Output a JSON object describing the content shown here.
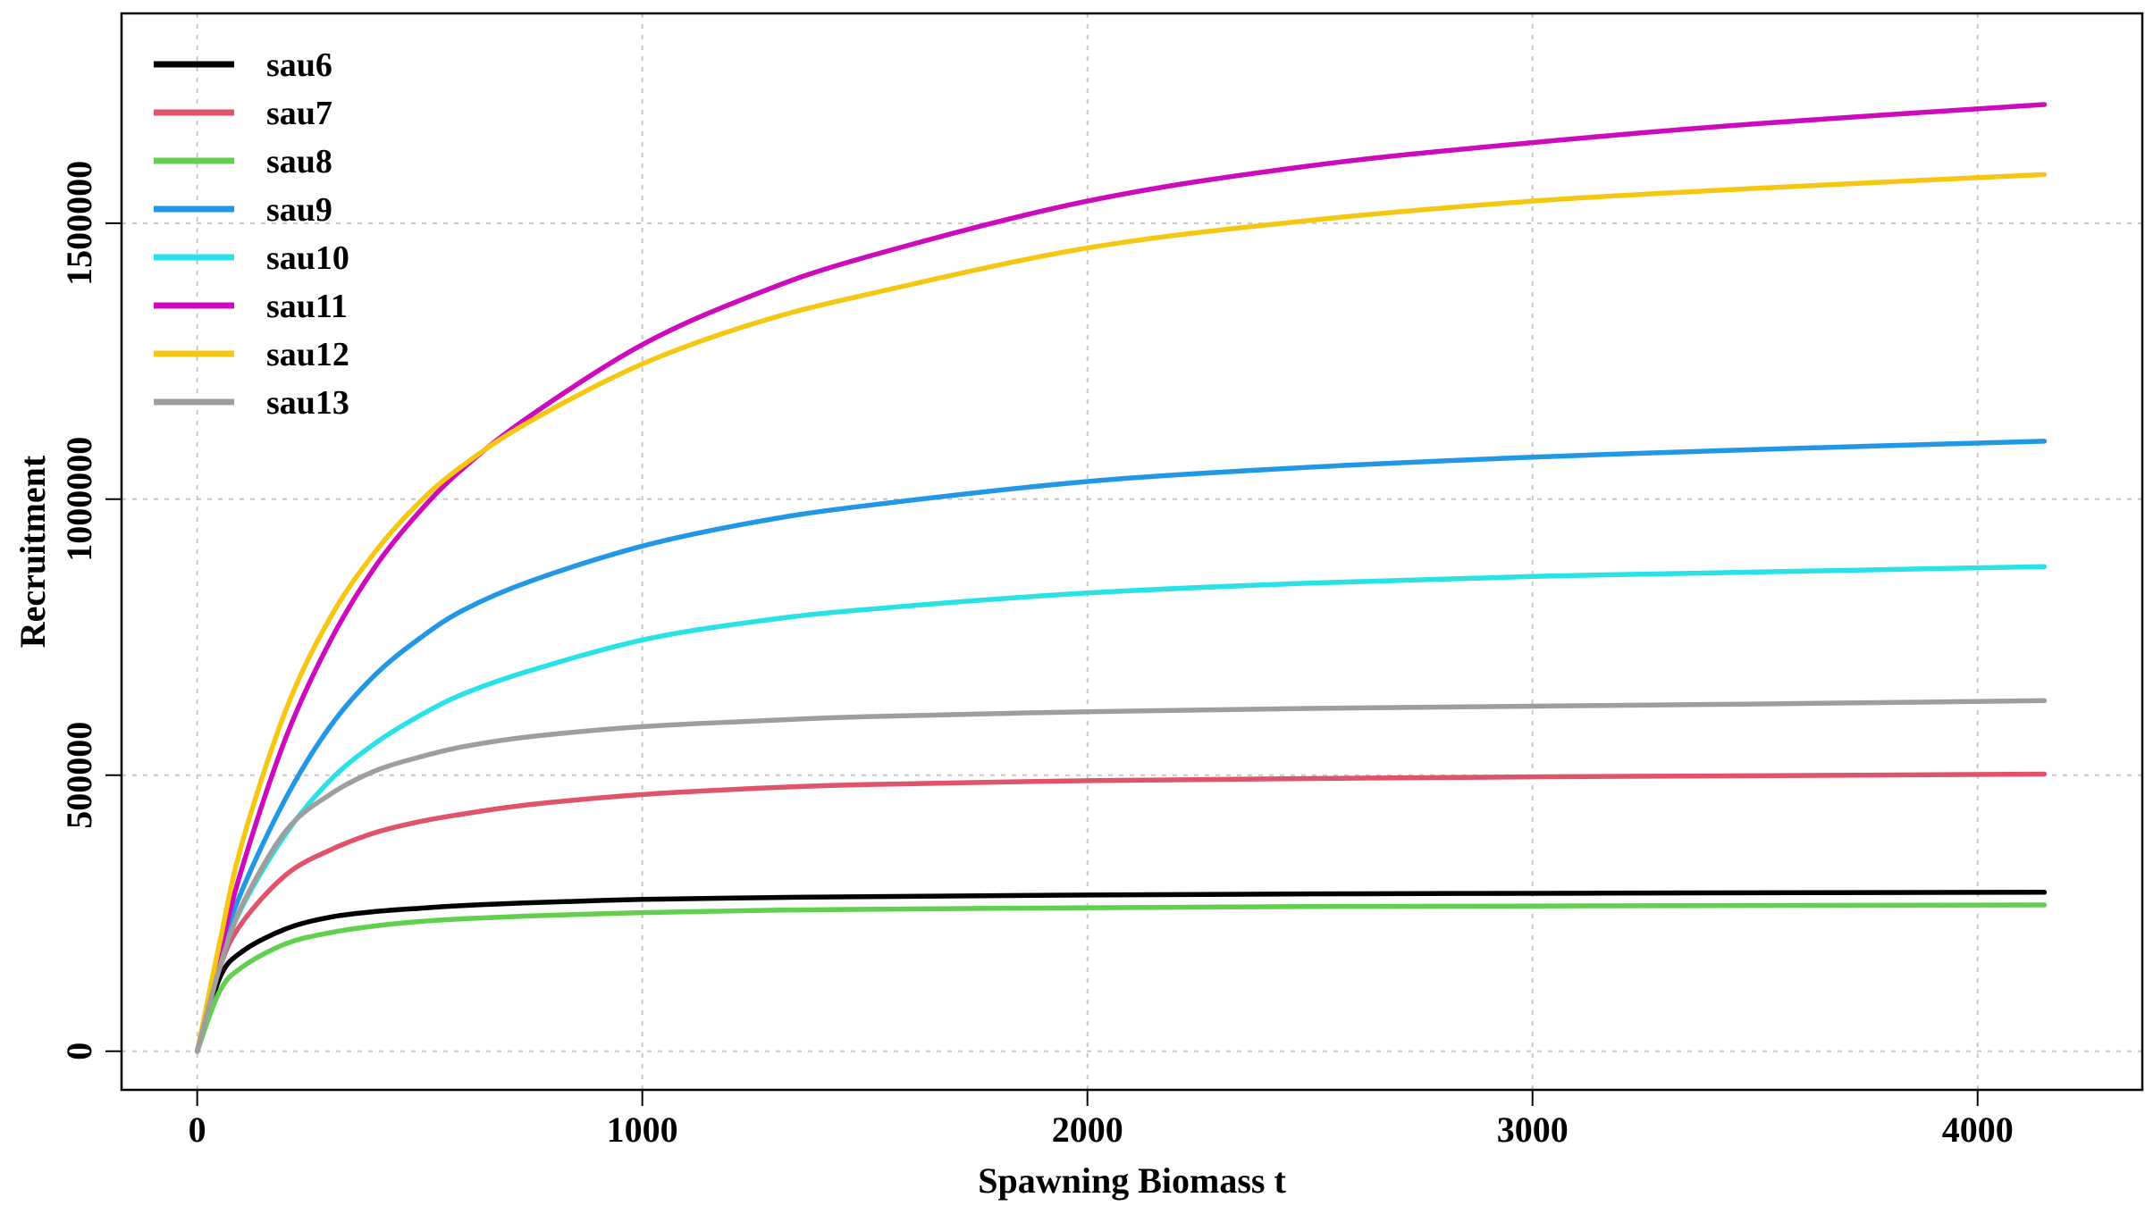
{
  "chart_data": {
    "type": "line",
    "title": "",
    "xlabel": "Spawning Biomass t",
    "ylabel": "Recruitment",
    "xlim": [
      -170,
      4370
    ],
    "ylim": [
      -70000,
      1880000
    ],
    "xticks": [
      0,
      1000,
      2000,
      3000,
      4000
    ],
    "yticks": [
      0,
      500000,
      1000000,
      1500000
    ],
    "xtick_labels": [
      "0",
      "1000",
      "2000",
      "3000",
      "4000"
    ],
    "ytick_labels": [
      "0",
      "500000",
      "1000000",
      "1500000"
    ],
    "grid": true,
    "legend_position": "top-left",
    "x": [
      0,
      50,
      100,
      200,
      300,
      400,
      500,
      600,
      750,
      1000,
      1250,
      1500,
      2000,
      2500,
      3000,
      3500,
      4150
    ],
    "series": [
      {
        "name": "sau6",
        "color": "#000000",
        "values": [
          0,
          132000,
          180000,
          222000,
          243000,
          253000,
          259000,
          264000,
          269000,
          275000,
          278000,
          280000,
          283000,
          285000,
          286000,
          287000,
          288000
        ]
      },
      {
        "name": "sau7",
        "color": "#DF536B",
        "values": [
          0,
          150000,
          232000,
          320000,
          365000,
          396000,
          416000,
          430000,
          447000,
          465000,
          476000,
          483000,
          490000,
          494000,
          497000,
          499000,
          502000
        ]
      },
      {
        "name": "sau8",
        "color": "#61D04F",
        "values": [
          0,
          108000,
          152000,
          195000,
          215000,
          227000,
          235000,
          240000,
          245000,
          251000,
          255000,
          257000,
          260000,
          262000,
          263000,
          264000,
          265000
        ]
      },
      {
        "name": "sau9",
        "color": "#2297E6",
        "values": [
          0,
          170000,
          290000,
          460000,
          590000,
          682000,
          748000,
          800000,
          852000,
          915000,
          958000,
          988000,
          1032000,
          1058000,
          1076000,
          1090000,
          1105000
        ]
      },
      {
        "name": "sau10",
        "color": "#28E2E5",
        "values": [
          0,
          155000,
          260000,
          395000,
          492000,
          558000,
          608000,
          648000,
          690000,
          745000,
          778000,
          800000,
          830000,
          848000,
          860000,
          868000,
          878000
        ]
      },
      {
        "name": "sau11",
        "color": "#CD0BBC",
        "values": [
          0,
          175000,
          330000,
          570000,
          745000,
          878000,
          978000,
          1058000,
          1152000,
          1280000,
          1370000,
          1438000,
          1540000,
          1604000,
          1646000,
          1680000,
          1715000
        ]
      },
      {
        "name": "sau12",
        "color": "#F5C710",
        "values": [
          0,
          195000,
          375000,
          620000,
          787000,
          905000,
          995000,
          1063000,
          1142000,
          1245000,
          1318000,
          1370000,
          1455000,
          1505000,
          1540000,
          1563000,
          1588000
        ]
      },
      {
        "name": "sau13",
        "color": "#9E9E9E",
        "values": [
          0,
          150000,
          263000,
          400000,
          466000,
          508000,
          533000,
          552000,
          570000,
          588000,
          598000,
          606000,
          615000,
          621000,
          625000,
          629000,
          635000
        ]
      }
    ]
  }
}
